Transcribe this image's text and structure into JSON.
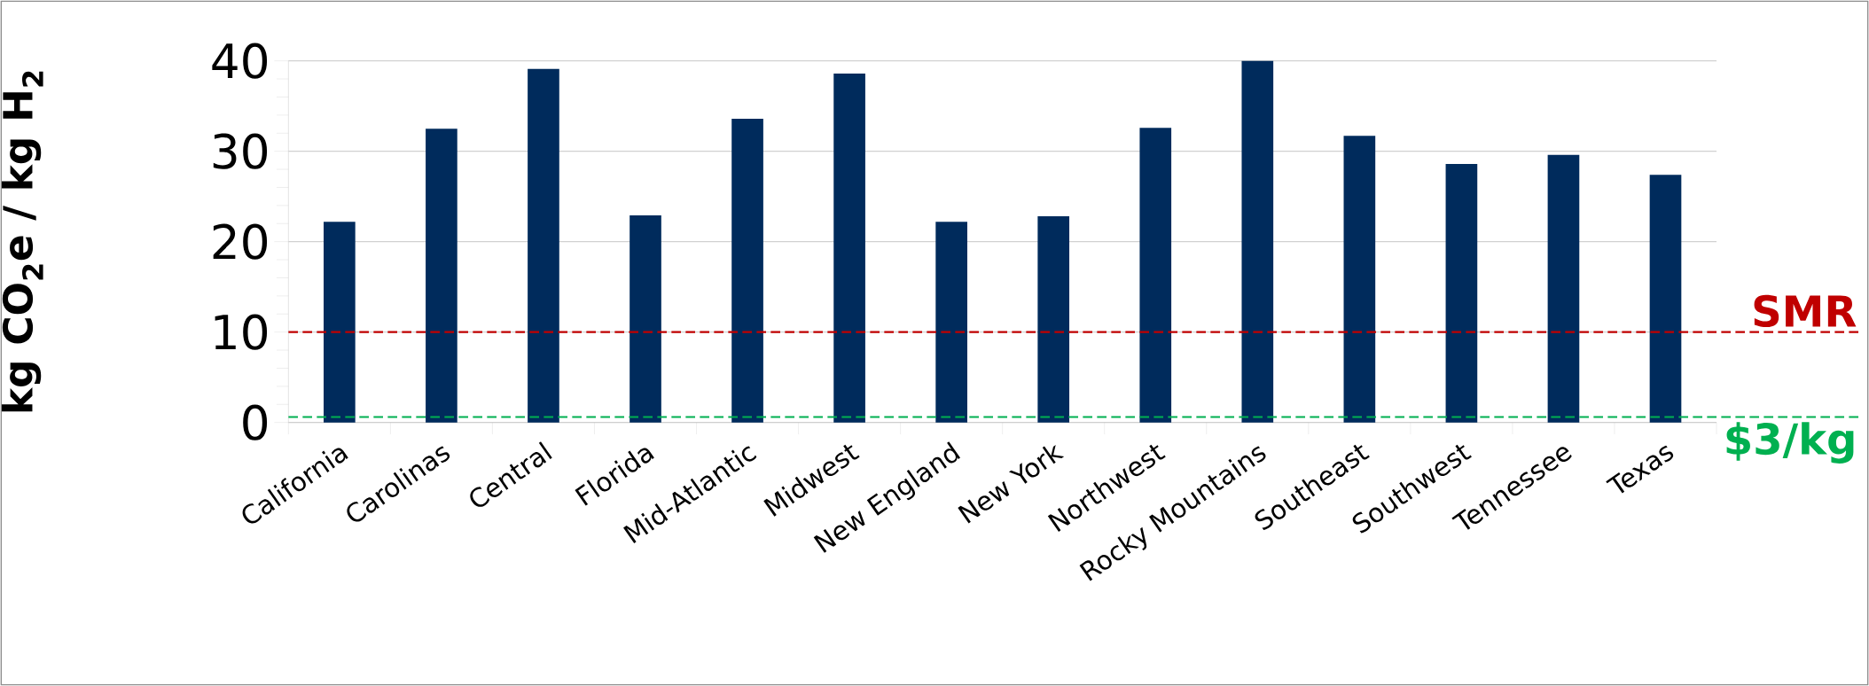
{
  "chart_data": {
    "type": "bar",
    "ylabel": "kg CO$_{2}$e / kg H$_{2}$",
    "categories": [
      "California",
      "Carolinas",
      "Central",
      "Florida",
      "Mid-Atlantic",
      "Midwest",
      "New England",
      "New York",
      "Northwest",
      "Rocky Mountains",
      "Southeast",
      "Southwest",
      "Tennessee",
      "Texas"
    ],
    "values": [
      22.2,
      32.5,
      39.1,
      22.9,
      33.6,
      38.6,
      22.2,
      22.8,
      32.6,
      40.0,
      31.7,
      28.6,
      29.6,
      27.4
    ],
    "color": "#002b5c",
    "ylim": [
      0,
      40
    ],
    "yticks": [
      0,
      10,
      20,
      30,
      40
    ],
    "grid": "y",
    "ref_lines": [
      {
        "axis": "y",
        "value": 10,
        "label": "SMR",
        "color": "#c00000",
        "line_style": "dashed"
      },
      {
        "axis": "y",
        "value": 0.6,
        "label": "$3/kg",
        "color": "#00b050",
        "line_style": "dashed"
      }
    ]
  }
}
